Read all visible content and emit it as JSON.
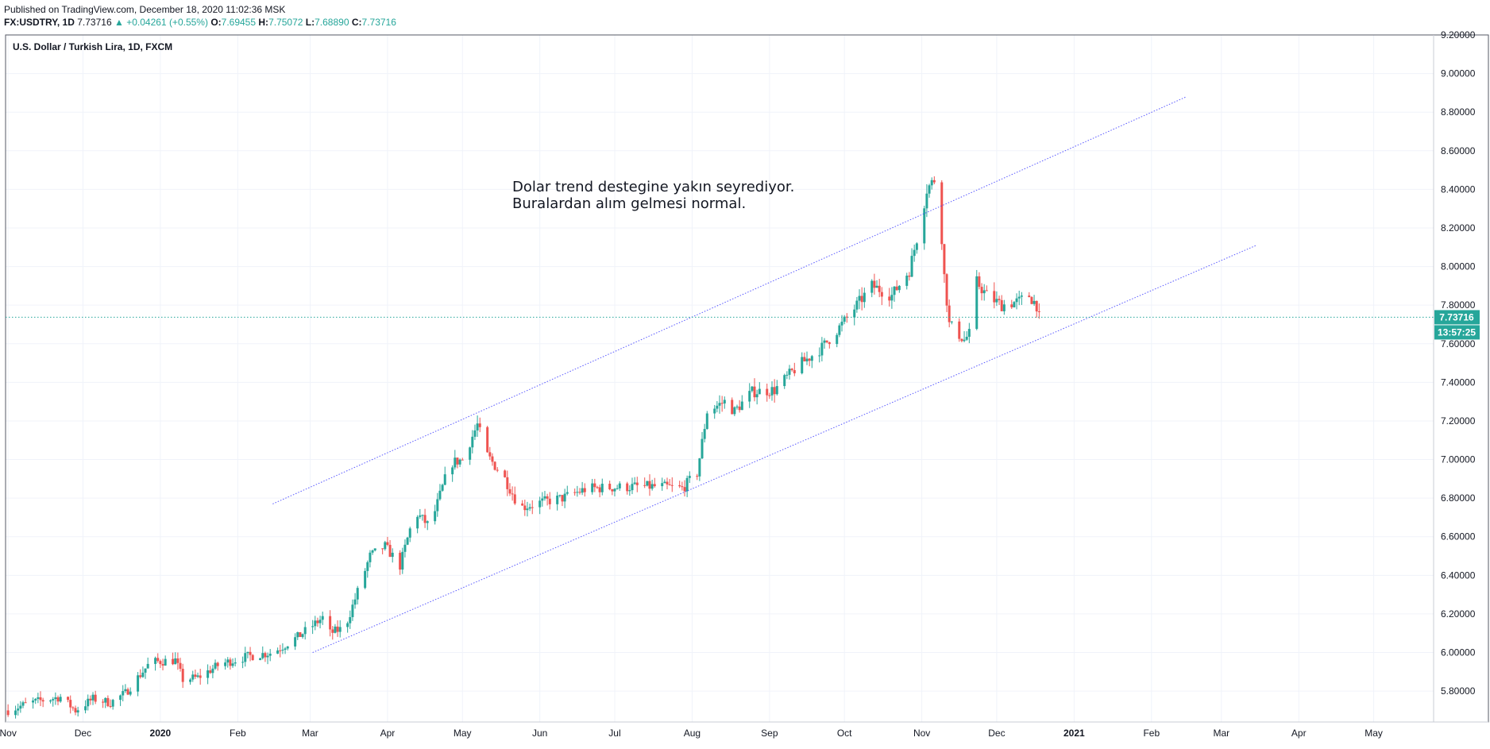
{
  "header": {
    "published": "Published on TradingView.com, December 18, 2020 11:02:36 MSK",
    "symbol": "FX:USDTRY, 1D",
    "last": "7.73716",
    "arrow": "▲",
    "change": "+0.04261 (+0.55%)",
    "o_label": "O:",
    "o_value": "7.69455",
    "h_label": "H:",
    "h_value": "7.75072",
    "l_label": "L:",
    "l_value": "7.68890",
    "c_label": "C:",
    "c_value": "7.73716"
  },
  "chart_data": {
    "type": "candlestick",
    "title": "U.S. Dollar / Turkish Lira, 1D, FXCM",
    "xlabel": "",
    "ylabel": "",
    "ylim": [
      5.64,
      9.2
    ],
    "x_range": [
      "2019-10-31",
      "2021-05-25"
    ],
    "yticks": [
      "5.80000",
      "6.00000",
      "6.20000",
      "6.40000",
      "6.60000",
      "6.80000",
      "7.00000",
      "7.20000",
      "7.40000",
      "7.60000",
      "7.80000",
      "8.00000",
      "8.20000",
      "8.40000",
      "8.60000",
      "8.80000",
      "9.00000",
      "9.20000"
    ],
    "xticks": [
      {
        "date": "2019-11-01",
        "label": "Nov"
      },
      {
        "date": "2019-12-01",
        "label": "Dec"
      },
      {
        "date": "2020-01-01",
        "label": "2020"
      },
      {
        "date": "2020-02-01",
        "label": "Feb"
      },
      {
        "date": "2020-03-01",
        "label": "Mar"
      },
      {
        "date": "2020-04-01",
        "label": "Apr"
      },
      {
        "date": "2020-05-01",
        "label": "May"
      },
      {
        "date": "2020-06-01",
        "label": "Jun"
      },
      {
        "date": "2020-07-01",
        "label": "Jul"
      },
      {
        "date": "2020-08-01",
        "label": "Aug"
      },
      {
        "date": "2020-09-01",
        "label": "Sep"
      },
      {
        "date": "2020-10-01",
        "label": "Oct"
      },
      {
        "date": "2020-11-01",
        "label": "Nov"
      },
      {
        "date": "2020-12-01",
        "label": "Dec"
      },
      {
        "date": "2021-01-01",
        "label": "2021"
      },
      {
        "date": "2021-02-01",
        "label": "Feb"
      },
      {
        "date": "2021-03-01",
        "label": "Mar"
      },
      {
        "date": "2021-04-01",
        "label": "Apr"
      },
      {
        "date": "2021-05-01",
        "label": "May"
      }
    ],
    "anchors": [
      [
        "2019-11-01",
        5.7
      ],
      [
        "2019-11-10",
        5.74
      ],
      [
        "2019-11-22",
        5.77
      ],
      [
        "2019-11-28",
        5.7
      ],
      [
        "2019-12-05",
        5.76
      ],
      [
        "2019-12-12",
        5.74
      ],
      [
        "2019-12-18",
        5.79
      ],
      [
        "2019-12-28",
        5.95
      ],
      [
        "2020-01-07",
        5.96
      ],
      [
        "2020-01-10",
        5.86
      ],
      [
        "2020-01-16",
        5.87
      ],
      [
        "2020-01-25",
        5.94
      ],
      [
        "2020-02-05",
        5.98
      ],
      [
        "2020-02-15",
        6.0
      ],
      [
        "2020-02-25",
        6.08
      ],
      [
        "2020-03-08",
        6.2
      ],
      [
        "2020-03-09",
        6.1
      ],
      [
        "2020-03-15",
        6.13
      ],
      [
        "2020-03-25",
        6.5
      ],
      [
        "2020-03-31",
        6.55
      ],
      [
        "2020-04-06",
        6.45
      ],
      [
        "2020-04-12",
        6.73
      ],
      [
        "2020-04-18",
        6.65
      ],
      [
        "2020-04-26",
        6.98
      ],
      [
        "2020-05-01",
        7.0
      ],
      [
        "2020-05-07",
        7.18
      ],
      [
        "2020-05-11",
        7.02
      ],
      [
        "2020-05-18",
        6.9
      ],
      [
        "2020-05-24",
        6.75
      ],
      [
        "2020-06-02",
        6.78
      ],
      [
        "2020-06-10",
        6.8
      ],
      [
        "2020-06-20",
        6.85
      ],
      [
        "2020-07-10",
        6.86
      ],
      [
        "2020-07-20",
        6.86
      ],
      [
        "2020-07-28",
        6.85
      ],
      [
        "2020-08-03",
        6.93
      ],
      [
        "2020-08-07",
        7.25
      ],
      [
        "2020-08-14",
        7.3
      ],
      [
        "2020-08-18",
        7.25
      ],
      [
        "2020-08-25",
        7.35
      ],
      [
        "2020-09-03",
        7.36
      ],
      [
        "2020-09-12",
        7.48
      ],
      [
        "2020-09-22",
        7.58
      ],
      [
        "2020-09-30",
        7.7
      ],
      [
        "2020-10-06",
        7.8
      ],
      [
        "2020-10-12",
        7.9
      ],
      [
        "2020-10-20",
        7.85
      ],
      [
        "2020-10-27",
        7.98
      ],
      [
        "2020-10-31",
        8.2
      ],
      [
        "2020-11-03",
        8.4
      ],
      [
        "2020-11-06",
        8.45
      ],
      [
        "2020-11-09",
        8.15
      ],
      [
        "2020-11-10",
        7.95
      ],
      [
        "2020-11-12",
        7.7
      ],
      [
        "2020-11-18",
        7.62
      ],
      [
        "2020-11-20",
        7.65
      ],
      [
        "2020-11-23",
        7.92
      ],
      [
        "2020-11-27",
        7.85
      ],
      [
        "2020-12-03",
        7.8
      ],
      [
        "2020-12-10",
        7.82
      ],
      [
        "2020-12-14",
        7.85
      ],
      [
        "2020-12-17",
        7.8
      ],
      [
        "2020-12-18",
        7.737
      ]
    ],
    "last_price": "7.73716",
    "countdown": "13:57:25",
    "trendlines": [
      {
        "from": [
          "2020-02-15",
          6.77
        ],
        "to": [
          "2021-02-15",
          8.88
        ]
      },
      {
        "from": [
          "2020-03-02",
          6.0
        ],
        "to": [
          "2021-03-15",
          8.11
        ]
      }
    ],
    "annotation": [
      "Dolar trend destegine yakın seyrediyor.",
      "Buralardan alım gelmesi normal."
    ],
    "colors": {
      "up": "#26a69a",
      "down": "#ef5350",
      "trend": "#3b3bff",
      "grid": "#f0f3fa",
      "text": "#131722"
    }
  }
}
